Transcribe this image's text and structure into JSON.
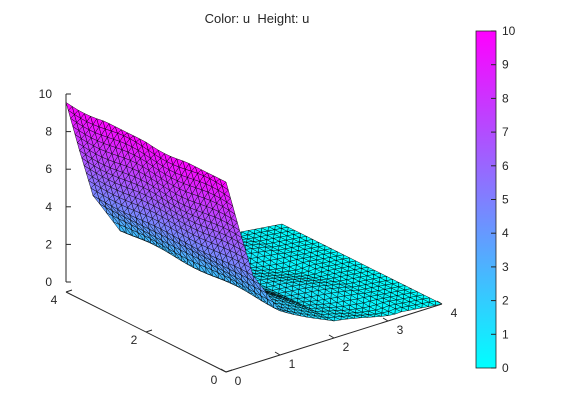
{
  "chart_data": {
    "type": "surface",
    "title": "Color: u  Height: u",
    "colormap": "cool",
    "colormap_colors": [
      "#00ffff",
      "#ff00ff"
    ],
    "xlim": [
      0,
      4
    ],
    "ylim": [
      0,
      4
    ],
    "zlim": [
      0,
      10
    ],
    "x_ticks": [
      "0",
      "1",
      "2",
      "3",
      "4"
    ],
    "y_ticks": [
      "0",
      "2",
      "4"
    ],
    "z_ticks": [
      "0",
      "2",
      "4",
      "6",
      "8",
      "10"
    ],
    "colorbar": {
      "range": [
        0,
        10
      ],
      "ticks": [
        "0",
        "1",
        "2",
        "3",
        "4",
        "5",
        "6",
        "7",
        "8",
        "9",
        "10"
      ]
    },
    "surface": {
      "description_of_shape": "u is 10 along the wall at x=0 and decays toward 0 as x increases",
      "samples": [
        {
          "x": 0.0,
          "u": 10
        },
        {
          "x": 0.25,
          "u": 7.2
        },
        {
          "x": 0.5,
          "u": 4.6
        },
        {
          "x": 1.0,
          "u": 2.4
        },
        {
          "x": 2.0,
          "u": 0.9
        },
        {
          "x": 3.0,
          "u": 0.35
        },
        {
          "x": 4.0,
          "u": 0
        }
      ]
    },
    "grid": false,
    "mesh_edges": "black"
  }
}
